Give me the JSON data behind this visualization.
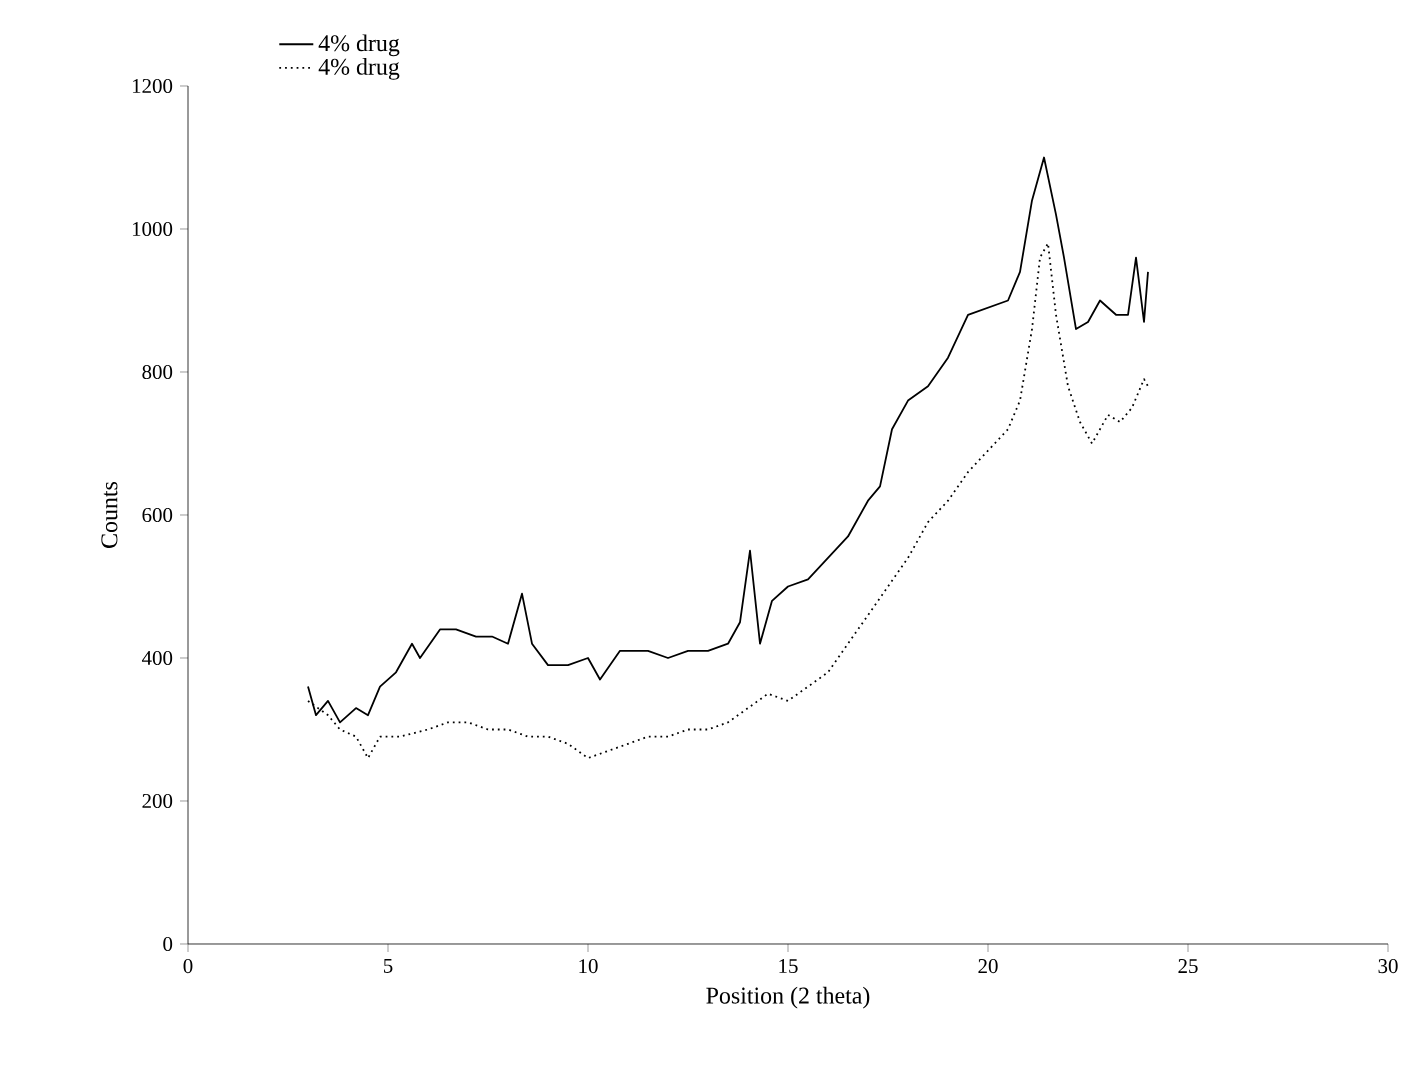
{
  "chart_data": {
    "type": "line",
    "xlabel": "Position (2 theta)",
    "ylabel": "Counts",
    "xlim": [
      0,
      30
    ],
    "ylim": [
      0,
      1200
    ],
    "xticks": [
      0,
      5,
      10,
      15,
      20,
      25,
      30
    ],
    "yticks": [
      0,
      200,
      400,
      600,
      800,
      1000,
      1200
    ],
    "grid": false,
    "legend": "top left",
    "marker": "none",
    "series": [
      {
        "name": "4% drug",
        "color": "#000000",
        "line_style": "solid",
        "x": [
          3,
          3.2,
          3.5,
          3.8,
          4.2,
          4.5,
          4.8,
          5.2,
          5.6,
          5.8,
          6.3,
          6.7,
          7.2,
          7.6,
          8.0,
          8.35,
          8.6,
          9,
          9.5,
          10,
          10.3,
          10.8,
          11.5,
          12,
          12.5,
          13,
          13.5,
          13.8,
          14.05,
          14.3,
          14.6,
          15,
          15.5,
          16,
          16.5,
          17,
          17.3,
          17.6,
          18,
          18.5,
          19,
          19.5,
          20,
          20.5,
          20.8,
          21.1,
          21.4,
          21.7,
          21.9,
          22.2,
          22.5,
          22.8,
          23.2,
          23.5,
          23.7,
          23.9,
          24
        ],
        "values": [
          360,
          320,
          340,
          310,
          330,
          320,
          360,
          380,
          420,
          400,
          440,
          440,
          430,
          430,
          420,
          490,
          420,
          390,
          390,
          400,
          370,
          410,
          410,
          400,
          410,
          410,
          420,
          450,
          550,
          420,
          480,
          500,
          510,
          540,
          570,
          620,
          640,
          720,
          760,
          780,
          820,
          880,
          890,
          900,
          940,
          1040,
          1100,
          1020,
          960,
          860,
          870,
          900,
          880,
          880,
          960,
          870,
          940
        ]
      },
      {
        "name": "4% drug",
        "color": "#000000",
        "line_style": "dotted",
        "x": [
          3,
          3.5,
          3.8,
          4.2,
          4.5,
          4.8,
          5.3,
          6,
          6.5,
          7,
          7.5,
          8,
          8.5,
          9,
          9.5,
          10,
          10.5,
          11,
          11.5,
          12,
          12.5,
          13,
          13.5,
          14,
          14.5,
          15,
          15.5,
          16,
          16.5,
          17,
          17.5,
          18,
          18.5,
          19,
          19.5,
          20,
          20.5,
          20.8,
          21.1,
          21.3,
          21.5,
          21.7,
          22,
          22.3,
          22.6,
          23,
          23.3,
          23.6,
          23.9,
          24
        ],
        "values": [
          340,
          320,
          300,
          290,
          260,
          290,
          290,
          300,
          310,
          310,
          300,
          300,
          290,
          290,
          280,
          260,
          270,
          280,
          290,
          290,
          300,
          300,
          310,
          330,
          350,
          340,
          360,
          380,
          420,
          460,
          500,
          540,
          590,
          620,
          660,
          690,
          720,
          760,
          860,
          960,
          980,
          880,
          780,
          730,
          700,
          740,
          730,
          750,
          790,
          780
        ]
      }
    ]
  }
}
